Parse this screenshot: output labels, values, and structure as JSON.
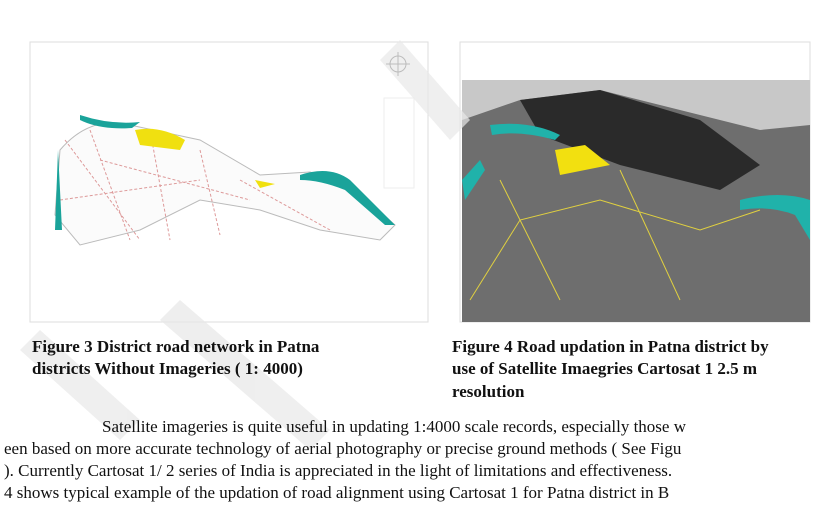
{
  "figures": [
    {
      "caption_lines": [
        "Figure 3 District road network  in Patna",
        "districts Without Imageries ( 1: 4000)"
      ]
    },
    {
      "caption_lines": [
        "Figure 4 Road updation in Patna district by",
        "use of Satellite Imaegries  Cartosat 1 2.5 m",
        "resolution"
      ]
    }
  ],
  "body": {
    "lines": [
      "Satellite imageries is quite useful in updating 1:4000 scale records, especially those w",
      "een based on more accurate technology of aerial photography or precise ground methods ( See Figu",
      "). Currently Cartosat 1/ 2 series of India is appreciated in the light of limitations and effectiveness.",
      "4 shows typical example of the updation of road alignment using Cartosat 1 for Patna district in B"
    ]
  }
}
